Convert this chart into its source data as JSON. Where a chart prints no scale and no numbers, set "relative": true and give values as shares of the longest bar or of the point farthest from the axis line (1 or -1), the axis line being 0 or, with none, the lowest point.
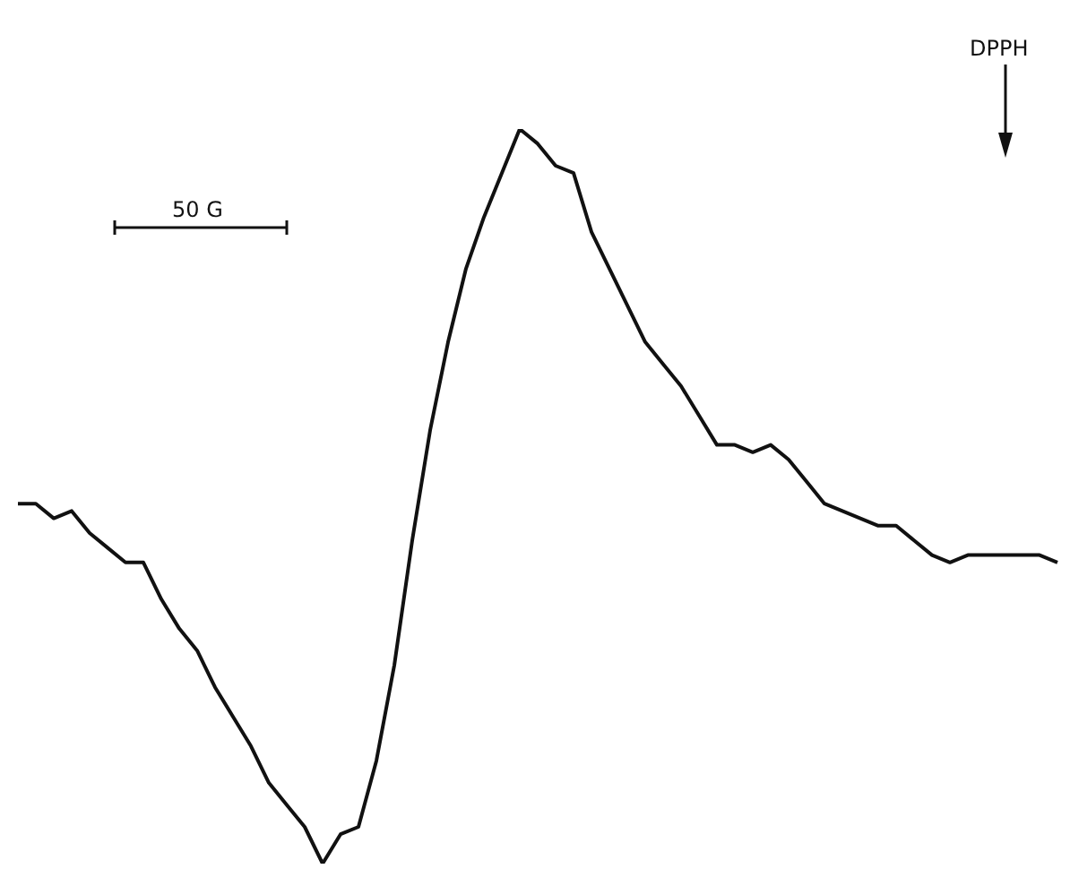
{
  "chart_data": {
    "type": "line",
    "relative": true,
    "color": "#111111",
    "marker": "none",
    "legend": false,
    "categories": [
      null,
      null,
      null,
      null,
      null,
      null,
      null,
      null,
      null,
      null,
      null,
      null,
      null,
      null,
      null,
      null,
      null,
      null,
      null,
      null,
      null,
      null,
      null,
      null,
      null,
      null,
      null,
      null,
      null,
      null,
      null,
      null,
      null,
      null,
      null,
      null,
      null,
      null,
      null,
      null,
      null,
      null,
      null,
      null,
      null,
      null,
      null,
      null,
      null,
      null,
      null,
      null,
      null,
      null,
      null,
      null,
      null,
      null,
      null
    ],
    "values": [
      0.49,
      0.49,
      0.47,
      0.48,
      0.45,
      0.43,
      0.41,
      0.41,
      0.36,
      0.32,
      0.29,
      0.24,
      0.2,
      0.16,
      0.11,
      0.08,
      0.05,
      0,
      0.04,
      0.05,
      0.14,
      0.27,
      0.44,
      0.59,
      0.71,
      0.81,
      0.88,
      0.94,
      1,
      0.98,
      0.95,
      0.94,
      0.86,
      0.81,
      0.76,
      0.71,
      0.68,
      0.65,
      0.61,
      0.57,
      0.57,
      0.56,
      0.57,
      0.55,
      0.52,
      0.49,
      0.48,
      0.47,
      0.46,
      0.46,
      0.44,
      0.42,
      0.41,
      0.42,
      0.42,
      0.42,
      0.42,
      0.42,
      0.41
    ],
    "annotations": [
      "50 G",
      "DPPH"
    ]
  }
}
